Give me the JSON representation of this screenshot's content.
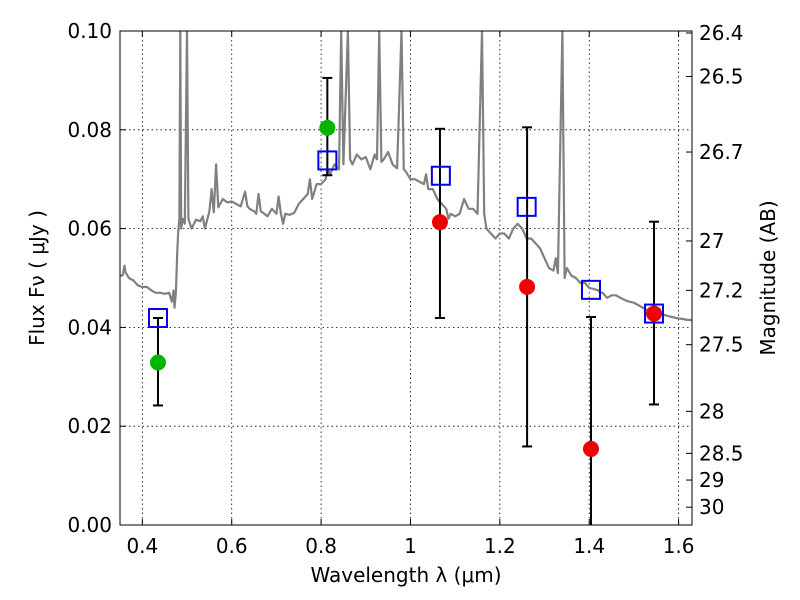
{
  "chart_data": {
    "type": "scatter",
    "xlabel": "Wavelength  λ (μm)",
    "ylabel": "Flux  Fν ( μJy )",
    "ylabel_right": "Magnitude (AB)",
    "xlim": [
      0.35,
      1.63
    ],
    "ylim": [
      0.0,
      0.1
    ],
    "x_ticks": [
      0.4,
      0.6,
      0.8,
      1.0,
      1.2,
      1.4,
      1.6
    ],
    "x_tick_labels": [
      "0.4",
      "0.6",
      "0.8",
      "1",
      "1.2",
      "1.4",
      "1.6"
    ],
    "y_ticks": [
      0.0,
      0.02,
      0.04,
      0.06,
      0.08,
      0.1
    ],
    "y_tick_labels": [
      "0.00",
      "0.02",
      "0.04",
      "0.06",
      "0.08",
      "0.10"
    ],
    "right_ticks": [
      {
        "flux": 0.0996,
        "label": "26.4"
      },
      {
        "flux": 0.0908,
        "label": "26.5"
      },
      {
        "flux": 0.0755,
        "label": "26.7"
      },
      {
        "flux": 0.0575,
        "label": "27"
      },
      {
        "flux": 0.0475,
        "label": "27.2"
      },
      {
        "flux": 0.0365,
        "label": "27.5"
      },
      {
        "flux": 0.023,
        "label": "28"
      },
      {
        "flux": 0.0145,
        "label": "28.5"
      },
      {
        "flux": 0.0091,
        "label": "29"
      },
      {
        "flux": 0.0036,
        "label": "30"
      }
    ],
    "grid": true,
    "colors": {
      "sed": "#808080",
      "model": "#0000ee",
      "detection": "#00b400",
      "measurement": "#ee0000",
      "errorbar": "#000000"
    },
    "model_points": [
      {
        "x": 0.435,
        "y": 0.0419
      },
      {
        "x": 0.814,
        "y": 0.0738
      },
      {
        "x": 1.068,
        "y": 0.0707
      },
      {
        "x": 1.26,
        "y": 0.0644
      },
      {
        "x": 1.404,
        "y": 0.0476
      },
      {
        "x": 1.545,
        "y": 0.0428
      }
    ],
    "observed_points": [
      {
        "x": 0.435,
        "y": 0.0329,
        "yerr_low": 0.0242,
        "yerr_high": 0.0419,
        "color": "detection"
      },
      {
        "x": 0.814,
        "y": 0.0804,
        "yerr_low": 0.0708,
        "yerr_high": 0.0905,
        "color": "detection"
      },
      {
        "x": 1.066,
        "y": 0.0613,
        "yerr_low": 0.0419,
        "yerr_high": 0.0802,
        "color": "measurement"
      },
      {
        "x": 1.261,
        "y": 0.0482,
        "yerr_low": 0.0159,
        "yerr_high": 0.0805,
        "color": "measurement"
      },
      {
        "x": 1.404,
        "y": 0.0154,
        "yerr_low": 0.0,
        "yerr_high": 0.0421,
        "color": "measurement"
      },
      {
        "x": 1.545,
        "y": 0.0428,
        "yerr_low": 0.0244,
        "yerr_high": 0.0614,
        "color": "measurement"
      }
    ],
    "sed_curve": [
      [
        0.35,
        0.0505
      ],
      [
        0.356,
        0.0505
      ],
      [
        0.36,
        0.0525
      ],
      [
        0.362,
        0.0512
      ],
      [
        0.37,
        0.05
      ],
      [
        0.38,
        0.0495
      ],
      [
        0.39,
        0.0485
      ],
      [
        0.4,
        0.0482
      ],
      [
        0.41,
        0.0482
      ],
      [
        0.42,
        0.0475
      ],
      [
        0.43,
        0.047
      ],
      [
        0.44,
        0.047
      ],
      [
        0.45,
        0.0468
      ],
      [
        0.46,
        0.047
      ],
      [
        0.466,
        0.0452
      ],
      [
        0.47,
        0.0475
      ],
      [
        0.472,
        0.044
      ],
      [
        0.475,
        0.047
      ],
      [
        0.478,
        0.055
      ],
      [
        0.48,
        0.059
      ],
      [
        0.483,
        0.062
      ],
      [
        0.485,
        0.1
      ],
      [
        0.487,
        0.06
      ],
      [
        0.49,
        0.062
      ],
      [
        0.495,
        0.061
      ],
      [
        0.5,
        0.1
      ],
      [
        0.503,
        0.062
      ],
      [
        0.51,
        0.06
      ],
      [
        0.52,
        0.0618
      ],
      [
        0.53,
        0.0615
      ],
      [
        0.535,
        0.0625
      ],
      [
        0.54,
        0.06
      ],
      [
        0.55,
        0.0635
      ],
      [
        0.555,
        0.068
      ],
      [
        0.56,
        0.0633
      ],
      [
        0.565,
        0.073
      ],
      [
        0.57,
        0.0643
      ],
      [
        0.58,
        0.066
      ],
      [
        0.59,
        0.0653
      ],
      [
        0.6,
        0.0655
      ],
      [
        0.61,
        0.065
      ],
      [
        0.62,
        0.0645
      ],
      [
        0.63,
        0.0675
      ],
      [
        0.635,
        0.0645
      ],
      [
        0.64,
        0.064
      ],
      [
        0.65,
        0.0635
      ],
      [
        0.655,
        0.063
      ],
      [
        0.66,
        0.067
      ],
      [
        0.665,
        0.0635
      ],
      [
        0.67,
        0.0632
      ],
      [
        0.68,
        0.0625
      ],
      [
        0.69,
        0.064
      ],
      [
        0.7,
        0.063
      ],
      [
        0.705,
        0.0665
      ],
      [
        0.71,
        0.063
      ],
      [
        0.715,
        0.061
      ],
      [
        0.72,
        0.063
      ],
      [
        0.73,
        0.0628
      ],
      [
        0.74,
        0.0632
      ],
      [
        0.75,
        0.065
      ],
      [
        0.76,
        0.066
      ],
      [
        0.77,
        0.067
      ],
      [
        0.775,
        0.07
      ],
      [
        0.78,
        0.066
      ],
      [
        0.79,
        0.069
      ],
      [
        0.8,
        0.069
      ],
      [
        0.81,
        0.07
      ],
      [
        0.815,
        0.072
      ],
      [
        0.82,
        0.071
      ],
      [
        0.83,
        0.073
      ],
      [
        0.84,
        0.072
      ],
      [
        0.845,
        0.1
      ],
      [
        0.85,
        0.073
      ],
      [
        0.86,
        0.1
      ],
      [
        0.865,
        0.074
      ],
      [
        0.87,
        0.073
      ],
      [
        0.88,
        0.075
      ],
      [
        0.89,
        0.074
      ],
      [
        0.9,
        0.0745
      ],
      [
        0.91,
        0.072
      ],
      [
        0.92,
        0.075
      ],
      [
        0.925,
        0.074
      ],
      [
        0.93,
        0.1
      ],
      [
        0.935,
        0.0735
      ],
      [
        0.94,
        0.074
      ],
      [
        0.95,
        0.0755
      ],
      [
        0.96,
        0.073
      ],
      [
        0.97,
        0.0722
      ],
      [
        0.98,
        0.1
      ],
      [
        0.985,
        0.072
      ],
      [
        0.99,
        0.0715
      ],
      [
        1.0,
        0.07
      ],
      [
        1.01,
        0.07
      ],
      [
        1.02,
        0.0695
      ],
      [
        1.03,
        0.069
      ],
      [
        1.035,
        0.071
      ],
      [
        1.04,
        0.068
      ],
      [
        1.05,
        0.068
      ],
      [
        1.06,
        0.066
      ],
      [
        1.07,
        0.065
      ],
      [
        1.08,
        0.064
      ],
      [
        1.085,
        0.062
      ],
      [
        1.09,
        0.063
      ],
      [
        1.1,
        0.0625
      ],
      [
        1.11,
        0.063
      ],
      [
        1.12,
        0.066
      ],
      [
        1.13,
        0.064
      ],
      [
        1.14,
        0.064
      ],
      [
        1.15,
        0.063
      ],
      [
        1.16,
        0.1
      ],
      [
        1.165,
        0.063
      ],
      [
        1.17,
        0.06
      ],
      [
        1.18,
        0.059
      ],
      [
        1.19,
        0.058
      ],
      [
        1.2,
        0.059
      ],
      [
        1.21,
        0.059
      ],
      [
        1.22,
        0.058
      ],
      [
        1.23,
        0.06
      ],
      [
        1.24,
        0.061
      ],
      [
        1.25,
        0.06
      ],
      [
        1.26,
        0.058
      ],
      [
        1.27,
        0.058
      ],
      [
        1.28,
        0.057
      ],
      [
        1.29,
        0.056
      ],
      [
        1.3,
        0.054
      ],
      [
        1.31,
        0.052
      ],
      [
        1.32,
        0.0515
      ],
      [
        1.325,
        0.054
      ],
      [
        1.33,
        0.051
      ],
      [
        1.34,
        0.1
      ],
      [
        1.345,
        0.05
      ],
      [
        1.35,
        0.052
      ],
      [
        1.36,
        0.0505
      ],
      [
        1.37,
        0.05
      ],
      [
        1.38,
        0.049
      ],
      [
        1.39,
        0.049
      ],
      [
        1.4,
        0.048
      ],
      [
        1.41,
        0.0478
      ],
      [
        1.42,
        0.0475
      ],
      [
        1.425,
        0.047
      ],
      [
        1.43,
        0.047
      ],
      [
        1.44,
        0.046
      ],
      [
        1.45,
        0.0465
      ],
      [
        1.46,
        0.0465
      ],
      [
        1.47,
        0.046
      ],
      [
        1.48,
        0.0455
      ],
      [
        1.49,
        0.0452
      ],
      [
        1.5,
        0.045
      ],
      [
        1.51,
        0.0445
      ],
      [
        1.52,
        0.044
      ],
      [
        1.53,
        0.0435
      ],
      [
        1.54,
        0.043
      ],
      [
        1.55,
        0.0425
      ],
      [
        1.56,
        0.0425
      ],
      [
        1.57,
        0.0425
      ],
      [
        1.58,
        0.0422
      ],
      [
        1.59,
        0.042
      ],
      [
        1.6,
        0.0418
      ],
      [
        1.61,
        0.0417
      ],
      [
        1.62,
        0.0415
      ],
      [
        1.63,
        0.0415
      ]
    ]
  }
}
